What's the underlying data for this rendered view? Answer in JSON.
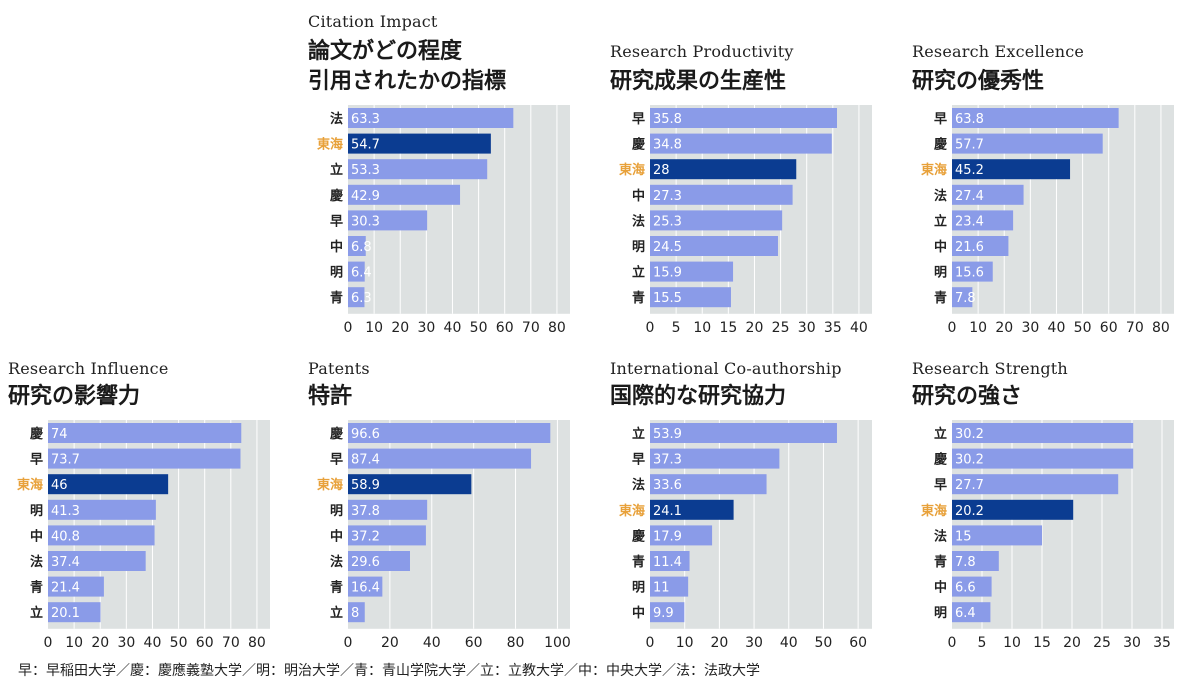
{
  "colors": {
    "bar": "#8a9be8",
    "highlight_bar": "#0b3c91",
    "plot_bg": "#dde1e1",
    "grid": "#ffffff",
    "highlight_label": "#e8a13a",
    "label": "#222222"
  },
  "footer": "早：早稲田大学／慶：慶應義塾大学／明：明治大学／青：青山学院大学／立：立教大学／中：中央大学／法：法政大学",
  "chart_data": [
    {
      "type": "bar",
      "orientation": "horizontal",
      "title": "Citation Impact",
      "subtitle": [
        "論文がどの程度",
        "引用されたかの指標"
      ],
      "categories": [
        "法",
        "東海",
        "立",
        "慶",
        "早",
        "中",
        "明",
        "青"
      ],
      "values": [
        63.3,
        54.7,
        53.3,
        42.9,
        30.3,
        6.8,
        6.4,
        6.3
      ],
      "value_labels": [
        "63.3",
        "54.7",
        "53.3",
        "42.9",
        "30.3",
        "6.8",
        "6.4",
        "6.3"
      ],
      "highlight": "東海",
      "xlim": [
        0,
        85
      ],
      "xticks": [
        0,
        10,
        20,
        30,
        40,
        50,
        60,
        70,
        80
      ]
    },
    {
      "type": "bar",
      "orientation": "horizontal",
      "title": "Research Productivity",
      "subtitle": [
        "研究成果の生産性"
      ],
      "categories": [
        "早",
        "慶",
        "東海",
        "中",
        "法",
        "明",
        "立",
        "青"
      ],
      "values": [
        35.8,
        34.8,
        28,
        27.3,
        25.3,
        24.5,
        15.9,
        15.5
      ],
      "value_labels": [
        "35.8",
        "34.8",
        "28",
        "27.3",
        "25.3",
        "24.5",
        "15.9",
        "15.5"
      ],
      "highlight": "東海",
      "xlim": [
        0,
        42.5
      ],
      "xticks": [
        0,
        5,
        10,
        15,
        20,
        25,
        30,
        35,
        40
      ]
    },
    {
      "type": "bar",
      "orientation": "horizontal",
      "title": "Research Excellence",
      "subtitle": [
        "研究の優秀性"
      ],
      "categories": [
        "早",
        "慶",
        "東海",
        "法",
        "立",
        "中",
        "明",
        "青"
      ],
      "values": [
        63.8,
        57.7,
        45.2,
        27.4,
        23.4,
        21.6,
        15.6,
        7.8
      ],
      "value_labels": [
        "63.8",
        "57.7",
        "45.2",
        "27.4",
        "23.4",
        "21.6",
        "15.6",
        "7.8"
      ],
      "highlight": "東海",
      "xlim": [
        0,
        85
      ],
      "xticks": [
        0,
        10,
        20,
        30,
        40,
        50,
        60,
        70,
        80
      ]
    },
    {
      "type": "bar",
      "orientation": "horizontal",
      "title": "Research Influence",
      "subtitle": [
        "研究の影響力"
      ],
      "categories": [
        "慶",
        "早",
        "東海",
        "明",
        "中",
        "法",
        "青",
        "立"
      ],
      "values": [
        74,
        73.7,
        46,
        41.3,
        40.8,
        37.4,
        21.4,
        20.1
      ],
      "value_labels": [
        "74",
        "73.7",
        "46",
        "41.3",
        "40.8",
        "37.4",
        "21.4",
        "20.1"
      ],
      "highlight": "東海",
      "xlim": [
        0,
        85
      ],
      "xticks": [
        0,
        10,
        20,
        30,
        40,
        50,
        60,
        70,
        80
      ]
    },
    {
      "type": "bar",
      "orientation": "horizontal",
      "title": "Patents",
      "subtitle": [
        "特許"
      ],
      "categories": [
        "慶",
        "早",
        "東海",
        "明",
        "中",
        "法",
        "青",
        "立"
      ],
      "values": [
        96.6,
        87.4,
        58.9,
        37.8,
        37.2,
        29.6,
        16.4,
        8
      ],
      "value_labels": [
        "96.6",
        "87.4",
        "58.9",
        "37.8",
        "37.2",
        "29.6",
        "16.4",
        "8"
      ],
      "highlight": "東海",
      "xlim": [
        0,
        106
      ],
      "xticks": [
        0,
        20,
        40,
        60,
        80,
        100
      ]
    },
    {
      "type": "bar",
      "orientation": "horizontal",
      "title": "International Co-authorship",
      "subtitle": [
        "国際的な研究協力"
      ],
      "categories": [
        "立",
        "早",
        "法",
        "東海",
        "慶",
        "青",
        "明",
        "中"
      ],
      "values": [
        53.9,
        37.3,
        33.6,
        24.1,
        17.9,
        11.4,
        11,
        9.9
      ],
      "value_labels": [
        "53.9",
        "37.3",
        "33.6",
        "24.1",
        "17.9",
        "11.4",
        "11",
        "9.9"
      ],
      "highlight": "東海",
      "xlim": [
        0,
        64
      ],
      "xticks": [
        0,
        10,
        20,
        30,
        40,
        50,
        60
      ]
    },
    {
      "type": "bar",
      "orientation": "horizontal",
      "title": "Research Strength",
      "subtitle": [
        "研究の強さ"
      ],
      "categories": [
        "立",
        "慶",
        "早",
        "東海",
        "法",
        "青",
        "中",
        "明"
      ],
      "values": [
        30.2,
        30.2,
        27.7,
        20.2,
        15,
        7.8,
        6.6,
        6.4
      ],
      "value_labels": [
        "30.2",
        "30.2",
        "27.7",
        "20.2",
        "15",
        "7.8",
        "6.6",
        "6.4"
      ],
      "highlight": "東海",
      "xlim": [
        0,
        37
      ],
      "xticks": [
        0,
        5,
        10,
        15,
        20,
        25,
        30,
        35
      ]
    }
  ]
}
